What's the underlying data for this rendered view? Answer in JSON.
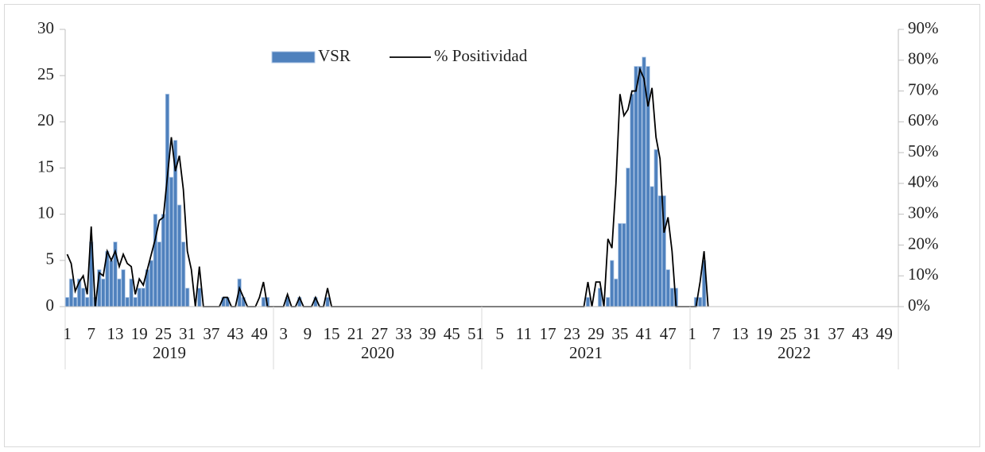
{
  "chart_data": {
    "type": "bar",
    "categories": [
      1,
      null,
      null,
      null,
      null,
      null,
      7,
      null,
      null,
      null,
      null,
      null,
      13,
      null,
      null,
      null,
      null,
      null,
      19,
      null,
      null,
      null,
      null,
      null,
      25,
      null,
      null,
      null,
      null,
      null,
      31,
      null,
      null,
      null,
      null,
      null,
      37,
      null,
      null,
      null,
      null,
      null,
      43,
      null,
      null,
      null,
      null,
      null,
      49,
      null,
      null,
      null,
      null,
      null,
      3,
      null,
      null,
      null,
      null,
      null,
      9,
      null,
      null,
      null,
      null,
      null,
      15,
      null,
      null,
      null,
      null,
      null,
      21,
      null,
      null,
      null,
      null,
      null,
      27,
      null,
      null,
      null,
      null,
      null,
      33,
      null,
      null,
      null,
      null,
      null,
      39,
      null,
      null,
      null,
      null,
      null,
      45,
      null,
      null,
      null,
      null,
      null,
      51,
      null,
      null,
      null,
      null,
      null,
      5,
      null,
      null,
      null,
      null,
      null,
      11,
      null,
      null,
      null,
      null,
      null,
      17,
      null,
      null,
      null,
      null,
      null,
      23,
      null,
      null,
      null,
      null,
      null,
      29,
      null,
      null,
      null,
      null,
      null,
      35,
      null,
      null,
      null,
      null,
      null,
      41,
      null,
      null,
      null,
      null,
      null,
      47,
      null,
      null,
      null,
      null,
      null,
      1,
      null,
      null,
      null,
      null,
      null,
      7,
      null,
      null,
      null,
      null,
      null,
      13,
      null,
      null,
      null,
      null,
      null,
      19,
      null,
      null,
      null,
      null,
      null,
      25,
      null,
      null,
      null,
      null,
      null,
      31,
      null,
      null,
      null,
      null,
      null,
      37,
      null,
      null,
      null,
      null,
      null,
      43,
      null,
      null,
      null,
      null,
      null,
      49,
      null,
      null,
      null
    ],
    "groups": [
      "2019",
      "2020",
      "2021",
      "2022"
    ],
    "series": [
      {
        "name": "VSR",
        "color": "#4f81bd",
        "values": [
          1,
          3,
          1,
          3,
          2,
          1,
          7,
          1,
          4,
          3,
          6,
          5,
          7,
          3,
          4,
          1,
          3,
          1,
          2,
          2,
          4,
          5,
          10,
          7,
          10,
          23,
          14,
          18,
          11,
          7,
          2,
          0,
          0,
          2,
          0,
          0,
          0,
          0,
          0,
          1,
          1,
          0,
          0,
          3,
          1,
          0,
          0,
          0,
          0,
          1,
          1,
          0,
          0,
          0,
          0,
          1,
          0,
          0,
          1,
          0,
          0,
          0,
          1,
          0,
          0,
          1,
          0,
          0,
          0,
          0,
          0,
          0,
          0,
          0,
          0,
          0,
          0,
          0,
          0,
          0,
          0,
          0,
          0,
          0,
          0,
          0,
          0,
          0,
          0,
          0,
          0,
          0,
          0,
          0,
          0,
          0,
          0,
          0,
          0,
          0,
          0,
          0,
          0,
          0,
          0,
          0,
          0,
          0,
          0,
          0,
          0,
          0,
          0,
          0,
          0,
          0,
          0,
          0,
          0,
          0,
          0,
          0,
          0,
          0,
          0,
          0,
          0,
          0,
          0,
          0,
          1,
          0,
          0,
          2,
          0,
          1,
          5,
          3,
          9,
          9,
          15,
          23,
          26,
          26,
          27,
          26,
          13,
          17,
          12,
          12,
          4,
          2,
          2,
          0,
          0,
          0,
          0,
          1,
          1,
          5,
          0,
          null,
          null,
          null,
          null,
          null,
          null,
          null,
          null,
          null,
          null,
          null,
          null,
          null,
          null,
          null,
          null,
          null,
          null,
          null,
          null,
          null,
          null,
          null,
          null,
          null,
          null,
          null,
          null,
          null,
          null,
          null,
          null,
          null,
          null,
          null,
          null,
          null,
          null,
          null,
          null,
          null,
          null,
          null,
          null,
          null,
          null,
          null
        ]
      },
      {
        "name": "% Positividad",
        "color": "#000000",
        "axis": "y2",
        "values": [
          17,
          14,
          5,
          8,
          10,
          4,
          26,
          0,
          11,
          10,
          18,
          15,
          18,
          13,
          17,
          14,
          13,
          4,
          9,
          7,
          12,
          17,
          22,
          28,
          29,
          42,
          55,
          44,
          49,
          38,
          18,
          12,
          0,
          13,
          0,
          0,
          0,
          0,
          0,
          3,
          3,
          0,
          0,
          6,
          3,
          0,
          0,
          0,
          3,
          8,
          0,
          0,
          0,
          0,
          0,
          4,
          0,
          0,
          3,
          0,
          0,
          0,
          3,
          0,
          0,
          6,
          0,
          0,
          0,
          0,
          0,
          0,
          0,
          0,
          0,
          0,
          0,
          0,
          0,
          0,
          0,
          0,
          0,
          0,
          0,
          0,
          0,
          0,
          0,
          0,
          0,
          0,
          0,
          0,
          0,
          0,
          0,
          0,
          0,
          0,
          0,
          0,
          0,
          0,
          0,
          0,
          0,
          0,
          0,
          0,
          0,
          0,
          0,
          0,
          0,
          0,
          0,
          0,
          0,
          0,
          0,
          0,
          0,
          0,
          0,
          0,
          0,
          0,
          0,
          0,
          8,
          0,
          8,
          8,
          0,
          22,
          19,
          40,
          69,
          62,
          64,
          70,
          70,
          77,
          74,
          65,
          71,
          55,
          48,
          24,
          29,
          18,
          0,
          0,
          0,
          0,
          0,
          0,
          8,
          18,
          0,
          null,
          null,
          null,
          null,
          null,
          null,
          null,
          null,
          null,
          null,
          null,
          null,
          null,
          null,
          null,
          null,
          null,
          null,
          null,
          null,
          null,
          null,
          null,
          null,
          null,
          null,
          null,
          null,
          null,
          null,
          null,
          null,
          null,
          null,
          null,
          null,
          null,
          null,
          null,
          null,
          null,
          null,
          null,
          null,
          null,
          null,
          null
        ]
      }
    ],
    "ylim": [
      0,
      30
    ],
    "yticks": [
      0,
      5,
      10,
      15,
      20,
      25,
      30
    ],
    "y2lim": [
      0,
      90
    ],
    "y2ticks": [
      {
        "value": 0,
        "label": "0%"
      },
      {
        "value": 10,
        "label": "10%"
      },
      {
        "value": 20,
        "label": "20%"
      },
      {
        "value": 30,
        "label": "30%"
      },
      {
        "value": 40,
        "label": "40%"
      },
      {
        "value": 50,
        "label": "50%"
      },
      {
        "value": 60,
        "label": "60%"
      },
      {
        "value": 70,
        "label": "70%"
      },
      {
        "value": 80,
        "label": "80%"
      },
      {
        "value": 90,
        "label": "90%"
      }
    ],
    "legend": "top"
  }
}
